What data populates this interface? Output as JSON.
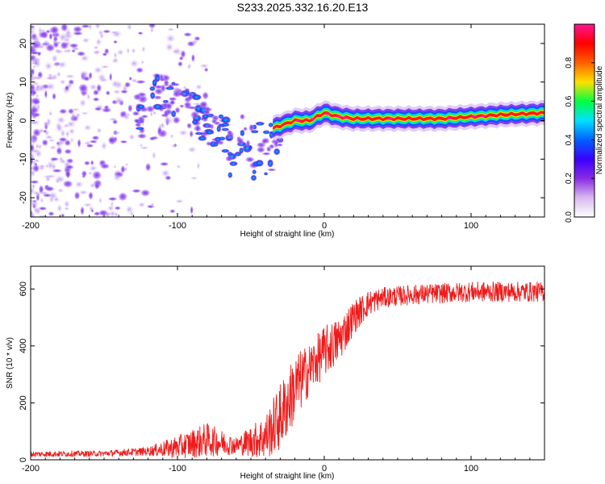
{
  "title": "S233.2025.332.16.20.E13",
  "colors": {
    "line": "#ee1c1c",
    "axis": "#000000",
    "background": "#ffffff"
  },
  "chart_data": [
    {
      "type": "heatmap",
      "xlabel": "Height of straight line (km)",
      "ylabel": "Frequency (Hz)",
      "xlim": [
        -200,
        150
      ],
      "ylim": [
        -25,
        25
      ],
      "xticks": [
        {
          "v": -200,
          "t": "-200"
        },
        {
          "v": -100,
          "t": "-100"
        },
        {
          "v": 0,
          "t": "0"
        },
        {
          "v": 100,
          "t": "100"
        }
      ],
      "yticks": [
        {
          "v": 20,
          "t": "20"
        },
        {
          "v": 10,
          "t": "10"
        },
        {
          "v": 0,
          "t": "0"
        },
        {
          "v": -10,
          "t": "-10"
        },
        {
          "v": -20,
          "t": "-20"
        }
      ],
      "colorbar": {
        "label": "Normalized spectral amplitude",
        "range": [
          0,
          1
        ],
        "ticks": [
          {
            "v": 0.0,
            "t": "0.0"
          },
          {
            "v": 0.2,
            "t": "0.2"
          },
          {
            "v": 0.4,
            "t": "0.4"
          },
          {
            "v": 0.6,
            "t": "0.6"
          },
          {
            "v": 0.8,
            "t": "0.8"
          }
        ],
        "stops": [
          "#ffffff",
          "#d8b8f0",
          "#8a2be2",
          "#3a00ff",
          "#0060ff",
          "#00e0ff",
          "#00ff40",
          "#ffe000",
          "#ff6000",
          "#ff0000",
          "#ff1493"
        ]
      },
      "ridge": [
        [
          -120,
          8
        ],
        [
          -100,
          5
        ],
        [
          -80,
          -1
        ],
        [
          -60,
          -3
        ],
        [
          -45,
          -3
        ],
        [
          -35,
          -2
        ],
        [
          -20,
          0
        ],
        [
          -10,
          0
        ],
        [
          0,
          2
        ],
        [
          10,
          1
        ],
        [
          20,
          0.5
        ],
        [
          40,
          0.5
        ],
        [
          60,
          0.5
        ],
        [
          80,
          0.5
        ],
        [
          100,
          1
        ],
        [
          120,
          1.5
        ],
        [
          150,
          2
        ]
      ]
    },
    {
      "type": "line",
      "xlabel": "Height of straight line (km)",
      "ylabel": "SNR (10 * v/v)",
      "xlim": [
        -200,
        150
      ],
      "ylim": [
        0,
        680
      ],
      "xticks": [
        {
          "v": -200,
          "t": "-200"
        },
        {
          "v": -100,
          "t": "-100"
        },
        {
          "v": 0,
          "t": "0"
        },
        {
          "v": 100,
          "t": "100"
        }
      ],
      "yticks": [
        {
          "v": 0,
          "t": "0"
        },
        {
          "v": 200,
          "t": "200"
        },
        {
          "v": 400,
          "t": "400"
        },
        {
          "v": 600,
          "t": "600"
        }
      ],
      "series": [
        {
          "name": "SNR",
          "trend_x": [
            -200,
            -150,
            -120,
            -100,
            -80,
            -60,
            -40,
            -30,
            -20,
            -10,
            0,
            10,
            20,
            30,
            40,
            60,
            80,
            100,
            120,
            150
          ],
          "trend_y": [
            20,
            22,
            30,
            45,
            70,
            50,
            80,
            150,
            250,
            320,
            380,
            420,
            500,
            550,
            570,
            580,
            585,
            590,
            590,
            590
          ],
          "noise": [
            10,
            10,
            15,
            40,
            60,
            30,
            80,
            120,
            120,
            90,
            90,
            80,
            60,
            45,
            35,
            35,
            35,
            35,
            35,
            35
          ]
        }
      ]
    }
  ]
}
